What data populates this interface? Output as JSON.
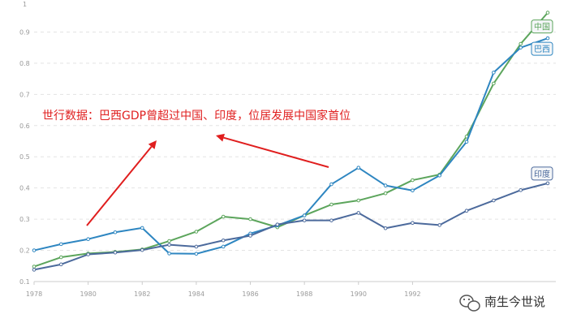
{
  "chart_data": {
    "type": "line",
    "annotation": "世行数据：巴西GDP曾超过中国、印度，位居发展中国家首位",
    "x": [
      1978,
      1979,
      1980,
      1981,
      1982,
      1983,
      1984,
      1985,
      1986,
      1987,
      1988,
      1989,
      1990,
      1991,
      1992,
      1993,
      1994,
      1995,
      1996,
      1997
    ],
    "x_ticks": [
      1978,
      1980,
      1982,
      1984,
      1986,
      1988,
      1990,
      1992
    ],
    "y_ticks": [
      0.1,
      0.2,
      0.3,
      0.4,
      0.5,
      0.6,
      0.7,
      0.8,
      0.9
    ],
    "y_tick_top": "1",
    "ylim": [
      0.1,
      1.0
    ],
    "xlim": [
      1978,
      1997
    ],
    "grid": "horizontal dashed",
    "series": [
      {
        "name": "中国",
        "color": "#5ca55c",
        "values": [
          0.148,
          0.178,
          0.19,
          0.195,
          0.203,
          0.23,
          0.26,
          0.308,
          0.3,
          0.274,
          0.312,
          0.347,
          0.36,
          0.383,
          0.425,
          0.443,
          0.565,
          0.735,
          0.862,
          0.962
        ]
      },
      {
        "name": "巴西",
        "color": "#2e86c1",
        "values": [
          0.2,
          0.22,
          0.236,
          0.258,
          0.272,
          0.19,
          0.189,
          0.212,
          0.254,
          0.28,
          0.312,
          0.412,
          0.465,
          0.408,
          0.392,
          0.44,
          0.548,
          0.77,
          0.85,
          0.88
        ]
      },
      {
        "name": "印度",
        "color": "#4c6a9c",
        "values": [
          0.138,
          0.155,
          0.187,
          0.193,
          0.201,
          0.218,
          0.212,
          0.232,
          0.247,
          0.283,
          0.296,
          0.296,
          0.32,
          0.271,
          0.288,
          0.281,
          0.327,
          0.36,
          0.393,
          0.415
        ]
      }
    ]
  },
  "watermark": {
    "text": "南生今世说",
    "icon": "wechat-icon"
  }
}
